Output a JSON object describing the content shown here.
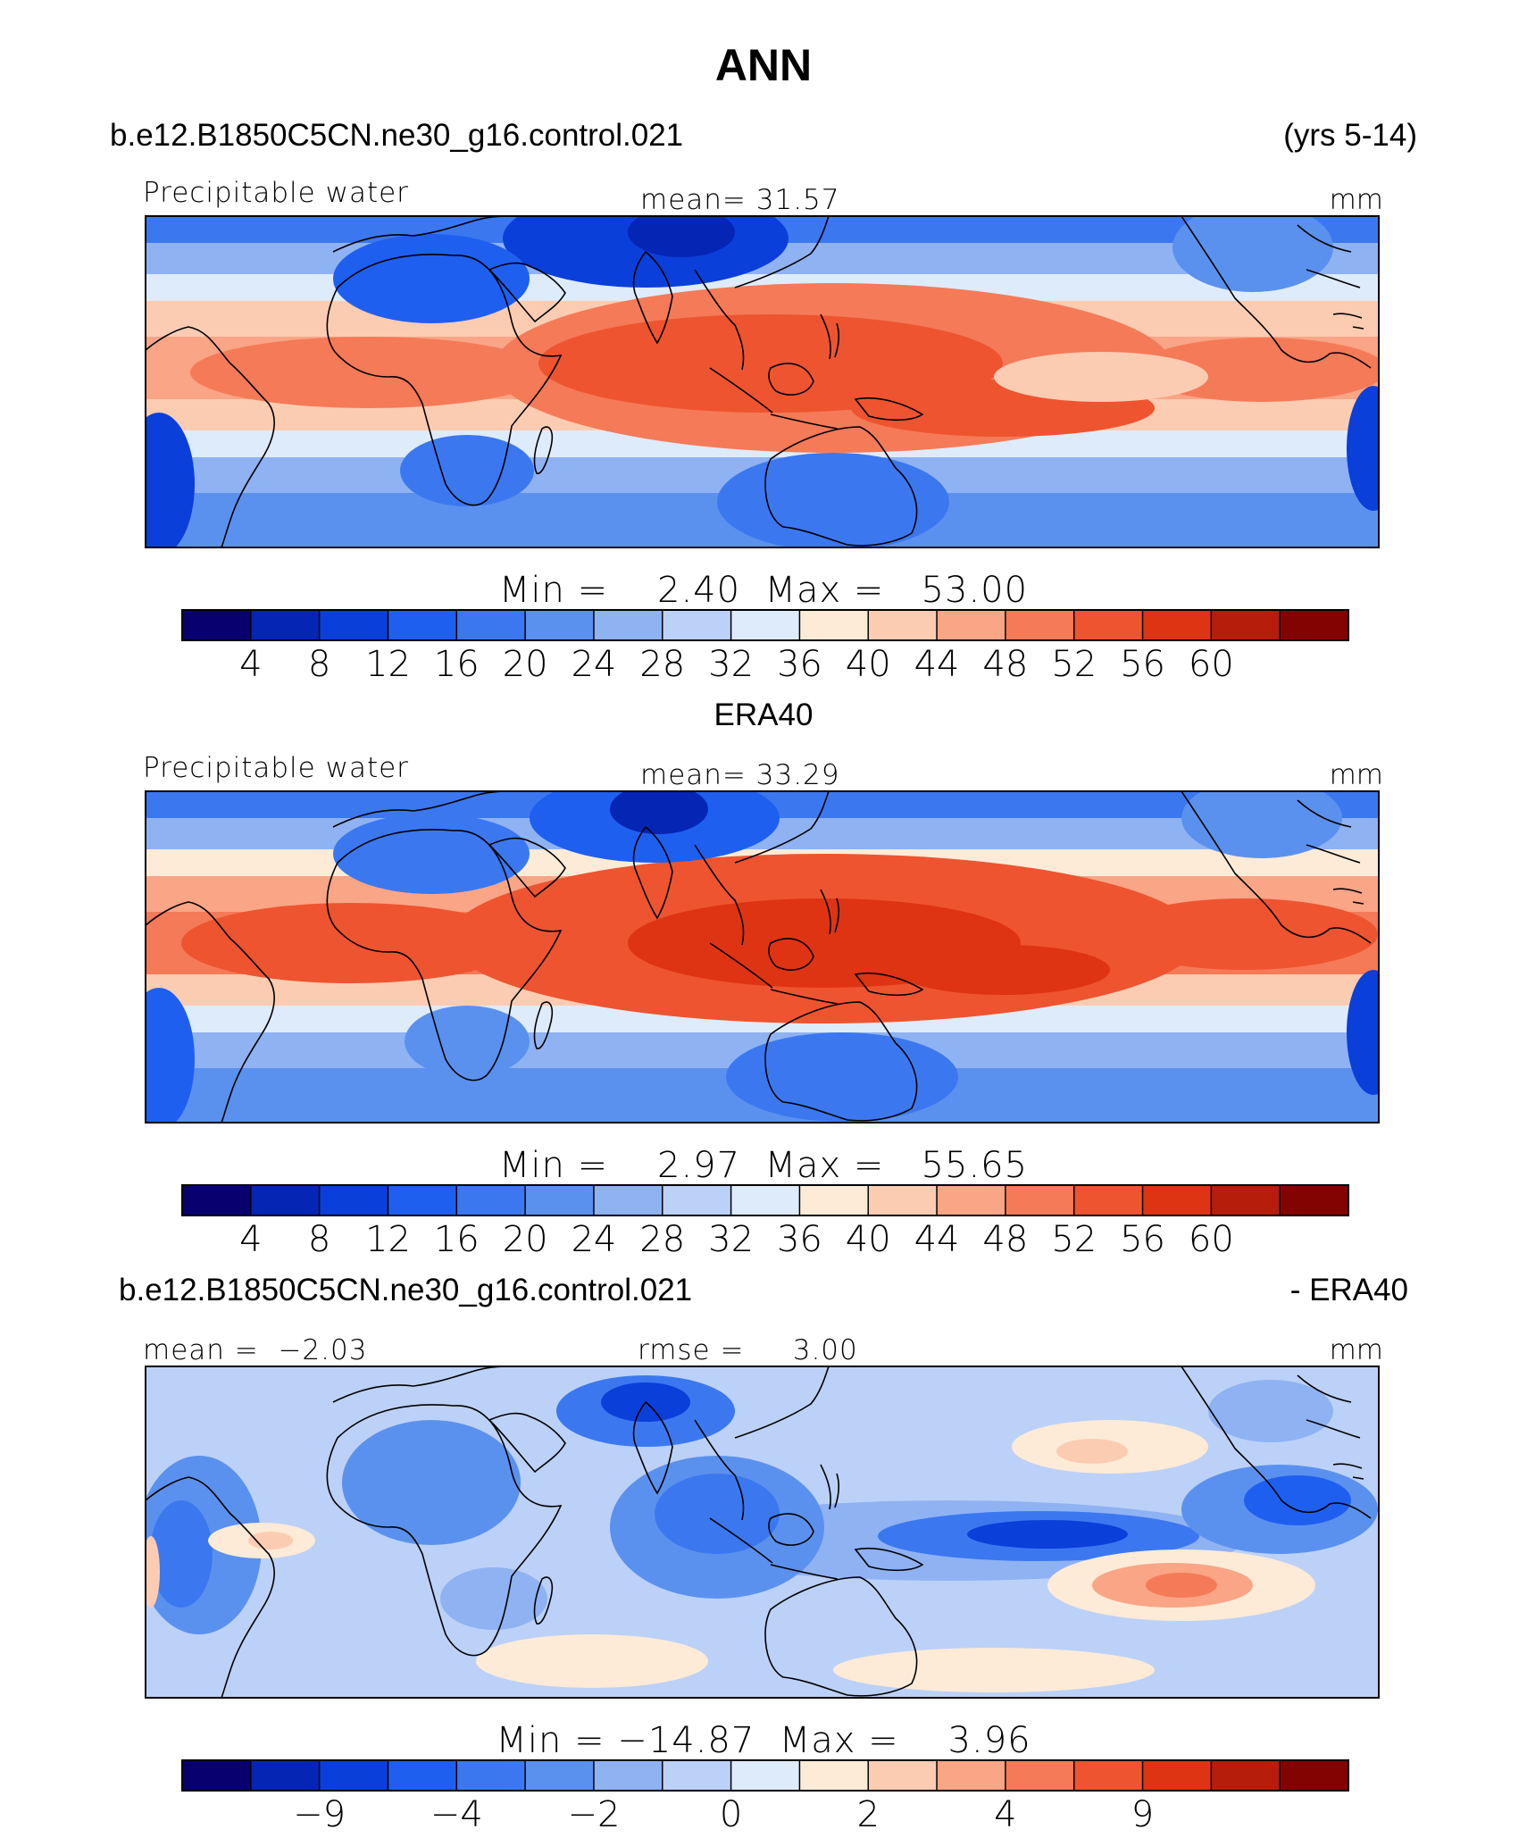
{
  "page": {
    "title": "ANN"
  },
  "colors": {
    "scale": [
      "#08006e",
      "#0525b5",
      "#0b3fd9",
      "#1f5ff0",
      "#3b78f0",
      "#5b91ee",
      "#8fb2f3",
      "#bcd1f7",
      "#deebfb",
      "#fdebd7",
      "#fcccb2",
      "#f9a586",
      "#f57a58",
      "#ee5430",
      "#de3413",
      "#b61d0a",
      "#830303"
    ]
  },
  "panels": [
    {
      "id": "model",
      "header_left": "b.e12.B1850C5CN.ne30_g16.control.021",
      "header_right": "(yrs 5-14)",
      "variable": "Precipitable water",
      "center_label": "mean=  31.57",
      "units": "mm",
      "minmax": "Min =    2.40  Max =   53.00",
      "colorbar_labels": [
        "4",
        "8",
        "12",
        "16",
        "20",
        "24",
        "28",
        "32",
        "36",
        "40",
        "44",
        "48",
        "52",
        "56",
        "60"
      ]
    },
    {
      "id": "obs",
      "header_center": "ERA40",
      "variable": "Precipitable water",
      "center_label": "mean=  33.29",
      "units": "mm",
      "minmax": "Min =    2.97  Max =   55.65",
      "colorbar_labels": [
        "4",
        "8",
        "12",
        "16",
        "20",
        "24",
        "28",
        "32",
        "36",
        "40",
        "44",
        "48",
        "52",
        "56",
        "60"
      ]
    },
    {
      "id": "diff",
      "header_left": "b.e12.B1850C5CN.ne30_g16.control.021",
      "header_right": "- ERA40",
      "variable": "mean =  −2.03",
      "center_label": "rmse =     3.00",
      "units": "mm",
      "minmax": "Min = −14.87  Max =    3.96",
      "colorbar_labels": [
        "−9",
        "−4",
        "−2",
        "0",
        "2",
        "4",
        "9"
      ]
    }
  ]
}
